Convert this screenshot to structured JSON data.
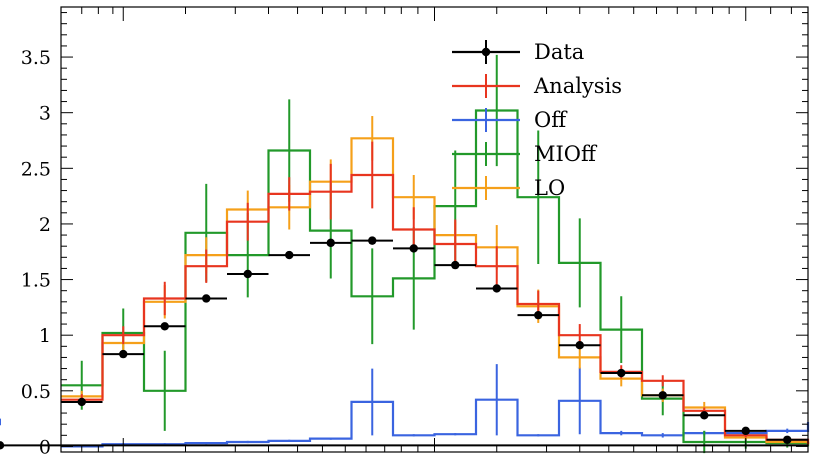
{
  "chart_data": {
    "type": "line",
    "title": "",
    "xlabel": "",
    "ylabel": "",
    "xlim": [
      0,
      18
    ],
    "ylim": [
      -0.05,
      3.95
    ],
    "yticks": [
      0,
      0.5,
      1,
      1.5,
      2,
      2.5,
      3,
      3.5
    ],
    "ytick_labels": [
      "0",
      "0.5",
      "1",
      "1.5",
      "2",
      "2.5",
      "3",
      "3.5"
    ],
    "grid": false,
    "legend_position": "top-right",
    "x_edges": [
      0,
      1,
      2,
      3,
      4,
      5,
      6,
      7,
      8,
      9,
      10,
      11,
      12,
      13,
      14,
      15,
      16,
      17,
      18
    ],
    "series": [
      {
        "name": "Data",
        "color": "#000000",
        "style": "points",
        "values": [
          0.4,
          0.83,
          1.08,
          1.33,
          1.55,
          1.72,
          1.83,
          1.85,
          1.78,
          1.63,
          1.42,
          1.18,
          0.91,
          0.66,
          0.46,
          0.28,
          0.14,
          0.06,
          0.01
        ],
        "errors": [
          0.03,
          0.03,
          0.03,
          0.02,
          0.02,
          0.02,
          0.02,
          0.02,
          0.02,
          0.02,
          0.02,
          0.02,
          0.02,
          0.02,
          0.02,
          0.02,
          0.01,
          0.01,
          0.01
        ]
      },
      {
        "name": "Analysis",
        "color": "#e8351f",
        "style": "histogram",
        "values": [
          0.42,
          1.0,
          1.33,
          1.62,
          2.02,
          2.27,
          2.29,
          2.44,
          1.95,
          1.82,
          1.62,
          1.28,
          1.0,
          0.67,
          0.59,
          0.32,
          0.1,
          0.06,
          0.02
        ],
        "errors": [
          0.05,
          0.08,
          0.15,
          0.15,
          0.17,
          0.15,
          0.25,
          0.3,
          0.2,
          0.22,
          0.18,
          0.12,
          0.1,
          0.06,
          0.05,
          0.03,
          0.02,
          0.02,
          0.01
        ]
      },
      {
        "name": "Off",
        "color": "#3a64e0",
        "style": "histogram",
        "values": [
          0.0,
          0.02,
          0.02,
          0.03,
          0.04,
          0.05,
          0.07,
          0.4,
          0.1,
          0.11,
          0.42,
          0.1,
          0.41,
          0.12,
          0.1,
          0.12,
          0.12,
          0.14,
          0.22
        ],
        "errors": [
          0.01,
          0.01,
          0.01,
          0.01,
          0.01,
          0.01,
          0.01,
          0.3,
          0.01,
          0.01,
          0.32,
          0.01,
          0.3,
          0.02,
          0.02,
          0.02,
          0.02,
          0.02,
          0.03
        ]
      },
      {
        "name": "MIOff",
        "color": "#22992a",
        "style": "histogram",
        "values": [
          0.55,
          1.02,
          0.5,
          1.92,
          1.72,
          2.66,
          1.94,
          1.35,
          1.51,
          2.16,
          3.02,
          2.24,
          1.65,
          1.05,
          0.43,
          0.04,
          0.04,
          0.03,
          0.0
        ],
        "errors": [
          0.22,
          0.22,
          0.36,
          0.44,
          0.38,
          0.46,
          0.43,
          0.43,
          0.46,
          0.5,
          0.5,
          0.6,
          0.4,
          0.3,
          0.15,
          0.1,
          0.06,
          0.04,
          0.02
        ]
      },
      {
        "name": "LO",
        "color": "#f5a01a",
        "style": "histogram",
        "values": [
          0.45,
          0.93,
          1.3,
          1.72,
          2.13,
          2.15,
          2.38,
          2.77,
          2.24,
          1.9,
          1.79,
          1.26,
          0.8,
          0.61,
          0.46,
          0.35,
          0.08,
          0.04,
          0.02
        ],
        "errors": [
          0.05,
          0.08,
          0.15,
          0.16,
          0.17,
          0.2,
          0.2,
          0.2,
          0.2,
          0.12,
          0.2,
          0.15,
          0.1,
          0.07,
          0.06,
          0.05,
          0.02,
          0.01,
          0.01
        ]
      }
    ]
  }
}
